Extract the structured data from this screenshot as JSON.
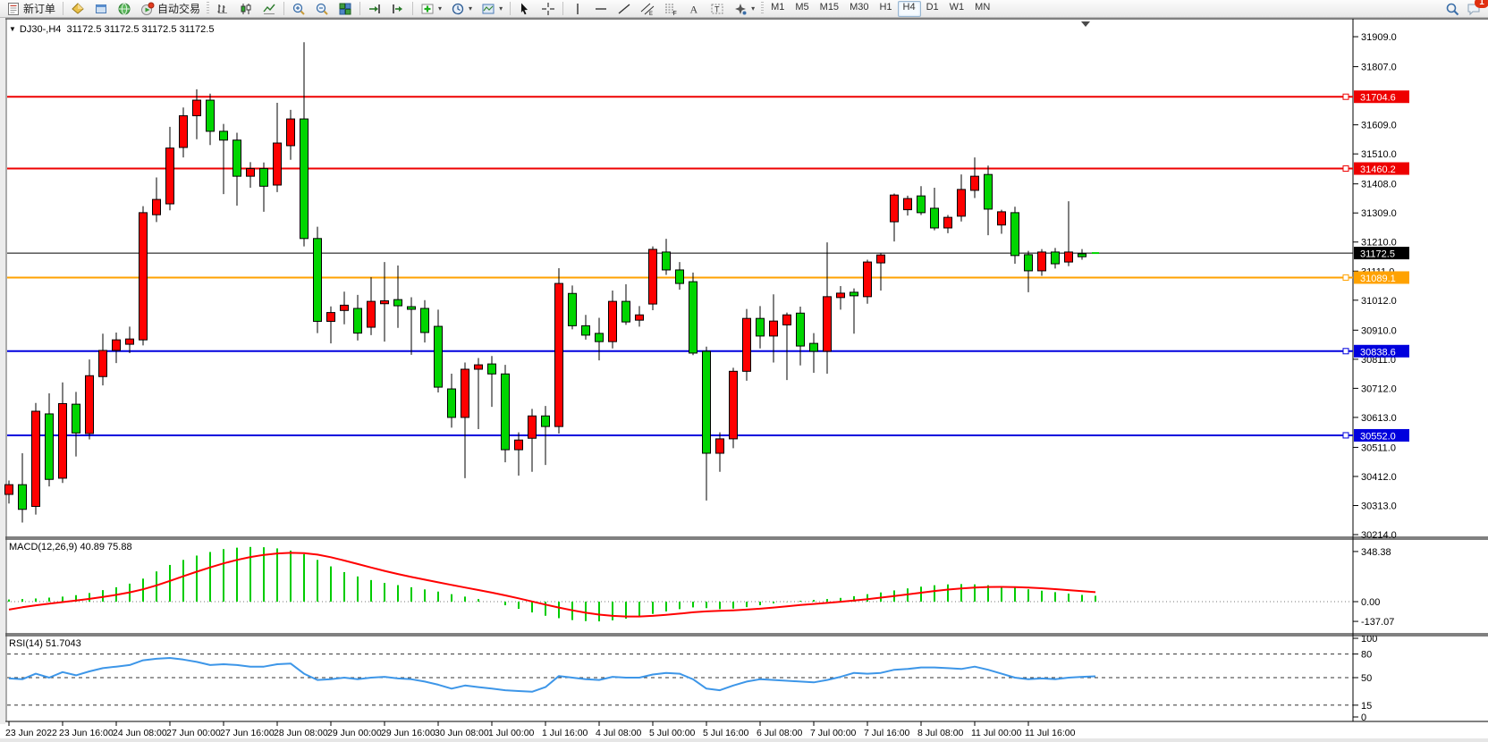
{
  "toolbar": {
    "new_order_label": "新订单",
    "autotrade_label": "自动交易",
    "timeframes": [
      "M1",
      "M5",
      "M15",
      "M30",
      "H1",
      "H4",
      "D1",
      "W1",
      "MN"
    ],
    "active_timeframe": "H4",
    "notification_badge": "1",
    "icons": [
      "new-order-icon",
      "market-watch-icon",
      "data-window-icon",
      "navigator-icon",
      "autotrade-icon",
      "bar-chart-icon",
      "candlestick-chart-icon",
      "line-chart-icon",
      "zoom-in-icon",
      "zoom-out-icon",
      "tile-windows-icon",
      "auto-scroll-icon",
      "chart-shift-icon",
      "indicators-icon",
      "periods-icon",
      "templates-icon",
      "cursor-icon",
      "crosshair-icon",
      "vertical-line-icon",
      "horizontal-line-icon",
      "trendline-icon",
      "equidistant-channel-icon",
      "fibonacci-icon",
      "text-icon",
      "text-label-icon",
      "arrows-icon",
      "search-icon",
      "chat-icon"
    ]
  },
  "chart": {
    "title_symbol": "DJ30-,H4",
    "title_ohlc": "31172.5 31172.5 31172.5 31172.5",
    "current_price_label": "31172.5",
    "price_ticks": [
      "31909.0",
      "31807.0",
      "31609.0",
      "31510.0",
      "31408.0",
      "31309.0",
      "31210.0",
      "31111.0",
      "31012.0",
      "30910.0",
      "30811.0",
      "30712.0",
      "30613.0",
      "30511.0",
      "30412.0",
      "30313.0",
      "30214.0"
    ],
    "level_labels": [
      "31704.6",
      "31460.2",
      "31089.1",
      "30838.6",
      "30552.0"
    ]
  },
  "macd_pane": {
    "label": "MACD(12,26,9) 40.89 75.88",
    "ticks": [
      "348.38",
      "0.00",
      "-137.07"
    ]
  },
  "rsi_pane": {
    "label": "RSI(14) 51.7043",
    "ticks": [
      "100",
      "80",
      "50",
      "15",
      "0"
    ]
  },
  "time_axis": {
    "labels": [
      "23 Jun 2022",
      "23 Jun 16:00",
      "24 Jun 08:00",
      "27 Jun 00:00",
      "27 Jun 16:00",
      "28 Jun 08:00",
      "29 Jun 00:00",
      "29 Jun 16:00",
      "30 Jun 08:00",
      "1 Jul 00:00",
      "1 Jul 16:00",
      "4 Jul 08:00",
      "5 Jul 00:00",
      "5 Jul 16:00",
      "6 Jul 08:00",
      "7 Jul 00:00",
      "7 Jul 16:00",
      "8 Jul 08:00",
      "11 Jul 00:00",
      "11 Jul 16:00"
    ]
  },
  "chart_data": {
    "type": "candlestick",
    "symbol": "DJ30-",
    "timeframe": "H4",
    "note": "Chinese color convention: red = bullish, green = bearish",
    "bull_color": "#fe0000",
    "bear_color": "#00d500",
    "wick_color": "#000000",
    "price_axis_range": [
      30214.0,
      31909.0
    ],
    "current_price": 31172.5,
    "horizontal_levels": [
      {
        "value": 31704.6,
        "color": "#ee0000"
      },
      {
        "value": 31460.2,
        "color": "#ee0000"
      },
      {
        "value": 31089.1,
        "color": "#ffa200"
      },
      {
        "value": 30838.6,
        "color": "#0000dd"
      },
      {
        "value": 30552.0,
        "color": "#0000dd"
      }
    ],
    "ohlc": [
      [
        30351,
        30398,
        30320,
        30384
      ],
      [
        30384,
        30491,
        30255,
        30300
      ],
      [
        30310,
        30662,
        30282,
        30634
      ],
      [
        30625,
        30695,
        30378,
        30402
      ],
      [
        30406,
        30732,
        30390,
        30660
      ],
      [
        30658,
        30700,
        30480,
        30560
      ],
      [
        30558,
        30810,
        30538,
        30755
      ],
      [
        30752,
        30898,
        30722,
        30841
      ],
      [
        30841,
        30902,
        30798,
        30877
      ],
      [
        30862,
        30922,
        30832,
        30880
      ],
      [
        30877,
        31332,
        30858,
        31310
      ],
      [
        31303,
        31430,
        31278,
        31355
      ],
      [
        31340,
        31602,
        31318,
        31530
      ],
      [
        31532,
        31668,
        31498,
        31640
      ],
      [
        31640,
        31730,
        31560,
        31693
      ],
      [
        31693,
        31715,
        31540,
        31587
      ],
      [
        31587,
        31612,
        31373,
        31557
      ],
      [
        31557,
        31582,
        31334,
        31434
      ],
      [
        31434,
        31482,
        31395,
        31460
      ],
      [
        31460,
        31481,
        31313,
        31400
      ],
      [
        31404,
        31684,
        31380,
        31547
      ],
      [
        31538,
        31660,
        31490,
        31629
      ],
      [
        31629,
        31890,
        31195,
        31222
      ],
      [
        31222,
        31262,
        30900,
        30940
      ],
      [
        30940,
        30991,
        30865,
        30970
      ],
      [
        30977,
        31041,
        30930,
        30995
      ],
      [
        30984,
        31030,
        30875,
        30900
      ],
      [
        30920,
        31090,
        30893,
        31008
      ],
      [
        31000,
        31142,
        30871,
        31010
      ],
      [
        31014,
        31130,
        30918,
        30993
      ],
      [
        30990,
        31022,
        30826,
        30981
      ],
      [
        30984,
        31012,
        30868,
        30902
      ],
      [
        30923,
        30980,
        30698,
        30716
      ],
      [
        30710,
        30762,
        30578,
        30613
      ],
      [
        30613,
        30800,
        30406,
        30777
      ],
      [
        30777,
        30815,
        30573,
        30792
      ],
      [
        30795,
        30822,
        30649,
        30761
      ],
      [
        30761,
        30792,
        30460,
        30503
      ],
      [
        30503,
        30562,
        30415,
        30536
      ],
      [
        30542,
        30642,
        30428,
        30618
      ],
      [
        30618,
        30652,
        30451,
        30582
      ],
      [
        30582,
        31121,
        30558,
        31069
      ],
      [
        31035,
        31062,
        30913,
        30925
      ],
      [
        30925,
        30962,
        30878,
        30893
      ],
      [
        30899,
        30952,
        30807,
        30871
      ],
      [
        30871,
        31045,
        30848,
        31008
      ],
      [
        31008,
        31066,
        30928,
        30938
      ],
      [
        30944,
        30992,
        30922,
        30962
      ],
      [
        30999,
        31195,
        30978,
        31185
      ],
      [
        31176,
        31221,
        31098,
        31115
      ],
      [
        31115,
        31142,
        31048,
        31069
      ],
      [
        31075,
        31106,
        30825,
        30832
      ],
      [
        30838,
        30854,
        30330,
        30491
      ],
      [
        30491,
        30562,
        30428,
        30540
      ],
      [
        30540,
        30782,
        30508,
        30770
      ],
      [
        30770,
        30982,
        30738,
        30950
      ],
      [
        30950,
        30992,
        30848,
        30890
      ],
      [
        30890,
        31032,
        30800,
        30941
      ],
      [
        30928,
        30970,
        30740,
        30962
      ],
      [
        30968,
        30990,
        30790,
        30856
      ],
      [
        30865,
        30900,
        30765,
        30838
      ],
      [
        30838,
        31209,
        30762,
        31024
      ],
      [
        31021,
        31060,
        30980,
        31036
      ],
      [
        31039,
        31052,
        30898,
        31027
      ],
      [
        31024,
        31150,
        31000,
        31142
      ],
      [
        31139,
        31172,
        31045,
        31166
      ],
      [
        31279,
        31375,
        31212,
        31370
      ],
      [
        31320,
        31368,
        31300,
        31358
      ],
      [
        31367,
        31400,
        31302,
        31310
      ],
      [
        31325,
        31395,
        31250,
        31258
      ],
      [
        31258,
        31302,
        31240,
        31294
      ],
      [
        31298,
        31440,
        31280,
        31389
      ],
      [
        31386,
        31498,
        31360,
        31434
      ],
      [
        31440,
        31470,
        31233,
        31322
      ],
      [
        31268,
        31320,
        31238,
        31313
      ],
      [
        31310,
        31330,
        31136,
        31164
      ],
      [
        31167,
        31180,
        31039,
        31112
      ],
      [
        31112,
        31186,
        31095,
        31176
      ],
      [
        31176,
        31190,
        31120,
        31136
      ],
      [
        31142,
        31349,
        31128,
        31176
      ],
      [
        31170,
        31186,
        31150,
        31160
      ],
      [
        31172.5,
        31172.5,
        31172.5,
        31172.5
      ]
    ],
    "macd": {
      "label": "MACD(12,26,9)",
      "current_main": 40.89,
      "current_signal": 75.88,
      "axis_range": [
        -137.07,
        348.38
      ],
      "histogram_color": "#00cc00",
      "signal_color": "#ff0000",
      "histogram": [
        15,
        18,
        22,
        28,
        35,
        45,
        60,
        80,
        100,
        125,
        160,
        210,
        255,
        290,
        320,
        345,
        365,
        375,
        380,
        378,
        370,
        355,
        330,
        290,
        245,
        205,
        175,
        150,
        130,
        115,
        100,
        85,
        70,
        52,
        35,
        18,
        0,
        -25,
        -50,
        -75,
        -98,
        -115,
        -128,
        -135,
        -137,
        -130,
        -118,
        -102,
        -85,
        -68,
        -52,
        -40,
        -45,
        -52,
        -48,
        -38,
        -25,
        -12,
        -2,
        6,
        12,
        18,
        26,
        38,
        52,
        64,
        78,
        92,
        104,
        114,
        120,
        122,
        120,
        114,
        106,
        96,
        86,
        76,
        66,
        56,
        47,
        40.89
      ],
      "signal_seed": -75,
      "signal_alpha": 0.22
    },
    "rsi": {
      "label": "RSI(14)",
      "current": 51.7043,
      "levels": [
        80,
        50,
        15
      ],
      "line_color": "#3d96e8",
      "values": [
        49,
        48,
        55,
        50,
        57,
        53,
        58,
        62,
        64,
        66,
        72,
        74,
        75,
        73,
        70,
        66,
        67,
        66,
        64,
        64,
        67,
        68,
        55,
        47,
        48,
        50,
        48,
        50,
        51,
        49,
        48,
        45,
        41,
        36,
        40,
        38,
        36,
        34,
        33,
        32,
        38,
        52,
        50,
        48,
        47,
        51,
        50,
        50,
        54,
        56,
        55,
        48,
        36,
        34,
        40,
        45,
        48,
        47,
        46,
        45,
        44,
        47,
        51,
        56,
        55,
        56,
        60,
        61,
        63,
        63,
        62,
        61,
        64,
        60,
        55,
        50,
        48,
        49,
        48,
        50,
        51,
        51.7
      ]
    }
  }
}
